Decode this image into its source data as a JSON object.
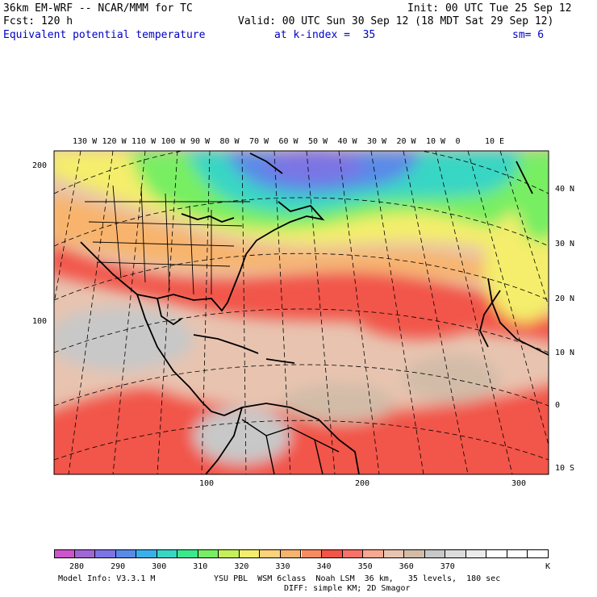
{
  "header": {
    "model": "36km EM-WRF -- NCAR/MMM for TC",
    "init": "Init: 00 UTC Tue 25 Sep 12",
    "fcst": "Fcst: 120 h",
    "valid": "Valid: 00 UTC Sun 30 Sep 12 (18 MDT Sat 29 Sep 12)",
    "field": "Equivalent potential temperature",
    "level": "at k-index =  35",
    "smooth": "sm= 6"
  },
  "map": {
    "top_lon_labels": [
      "130 W",
      "120 W",
      "110 W",
      "100 W",
      "90 W",
      "80 W",
      "70 W",
      "60 W",
      "50 W",
      "40 W",
      "30 W",
      "20 W",
      "10 W",
      "0",
      "10 E"
    ],
    "right_lat_labels": [
      "40 N",
      "30 N",
      "20 N",
      "10 N",
      "0",
      "10 S"
    ],
    "left_y_labels": [
      "200",
      "100"
    ],
    "bottom_x_labels": [
      "100",
      "200",
      "300"
    ]
  },
  "colorbar": {
    "colors": [
      "#cc55cc",
      "#a066d6",
      "#7c74e4",
      "#5a8ae8",
      "#3ab0ea",
      "#38d6c4",
      "#3ce88c",
      "#78ee64",
      "#c4f05a",
      "#f4ee6c",
      "#fcd27c",
      "#f8b46c",
      "#f88c60",
      "#f25448",
      "#f87268",
      "#f8a890",
      "#e8c4b0",
      "#d2bca8",
      "#c8c8c8",
      "#dcdcdc",
      "#ececec",
      "#ffffff",
      "#ffffff",
      "#ffffff"
    ],
    "labels": [
      "280",
      "290",
      "300",
      "310",
      "320",
      "330",
      "340",
      "350",
      "360",
      "370"
    ],
    "unit": "K"
  },
  "footer": {
    "model_info": "Model Info: V3.3.1 M",
    "physics": "YSU PBL  WSM 6class  Noah LSM  36 km,   35 levels,  180 sec",
    "diffusion": "DIFF: simple KM; 2D Smagor"
  }
}
